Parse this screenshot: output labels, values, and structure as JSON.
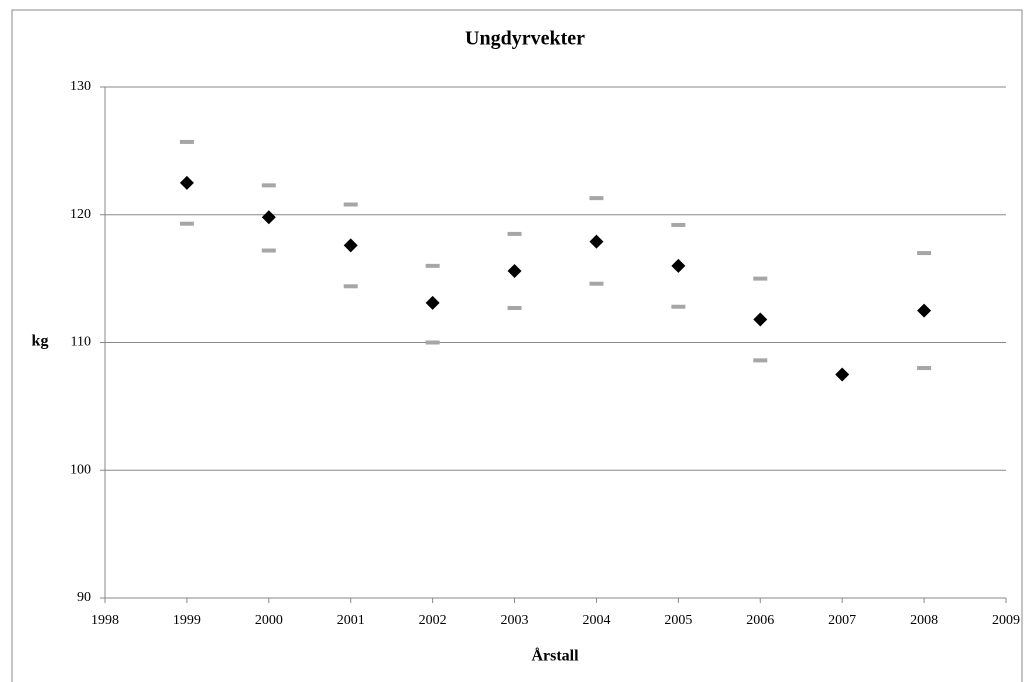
{
  "chart_data": {
    "type": "scatter",
    "title": "Ungdyrvekter",
    "x_label": "Årstall",
    "y_label": "kg",
    "x": [
      1999,
      2000,
      2001,
      2002,
      2003,
      2004,
      2005,
      2006,
      2007,
      2008
    ],
    "series": [
      {
        "color": "#000000",
        "marker": "diamond",
        "values": [
          122.5,
          119.8,
          117.6,
          113.1,
          115.6,
          117.9,
          116.0,
          111.8,
          107.5,
          112.5
        ]
      },
      {
        "color": "#a6a6a6",
        "marker": "dash",
        "values": [
          125.7,
          122.3,
          120.8,
          116.0,
          118.5,
          121.3,
          119.2,
          115.0,
          null,
          117.0
        ]
      },
      {
        "color": "#a6a6a6",
        "marker": "dash",
        "values": [
          119.3,
          117.2,
          114.4,
          110.0,
          112.7,
          114.6,
          112.8,
          108.6,
          null,
          108.0
        ]
      }
    ],
    "xlim": [
      1998,
      2009
    ],
    "xticks": [
      1998,
      1999,
      2000,
      2001,
      2002,
      2003,
      2004,
      2005,
      2006,
      2007,
      2008,
      2009
    ],
    "ylim": [
      90,
      130
    ],
    "yticks": [
      90,
      100,
      110,
      120,
      130
    ],
    "grid": true
  }
}
